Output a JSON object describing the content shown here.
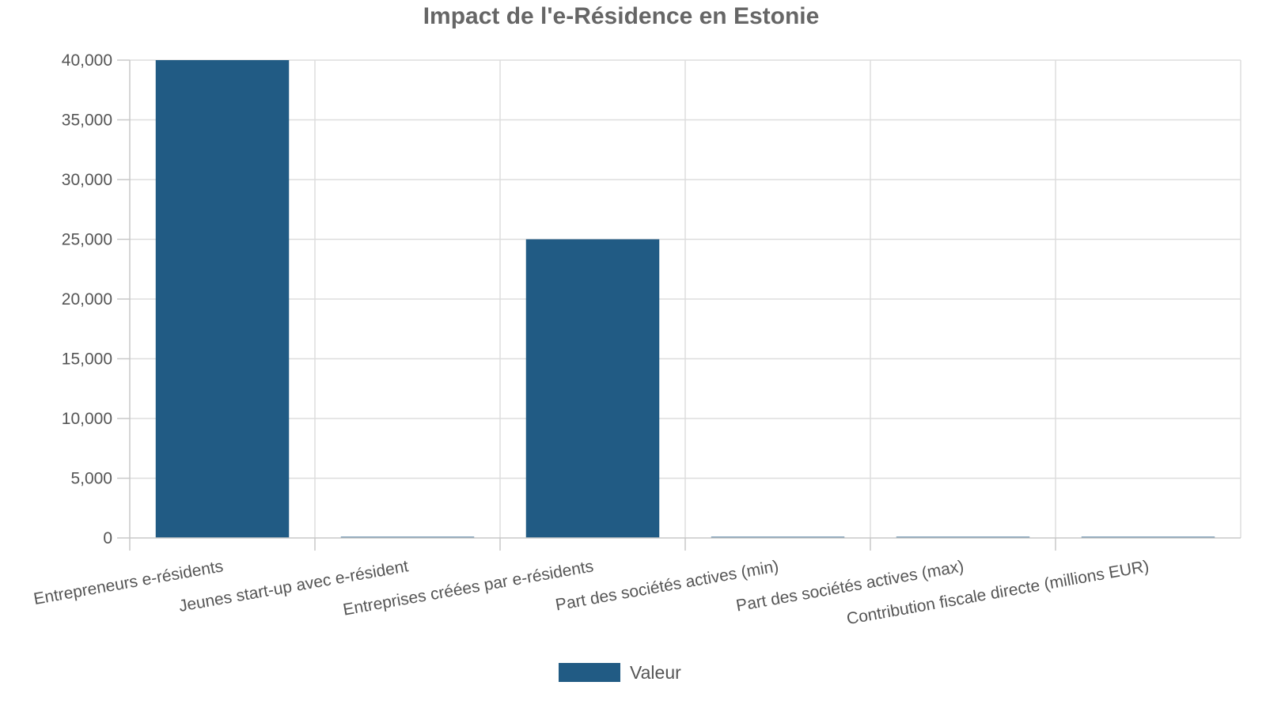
{
  "chart_data": {
    "type": "bar",
    "title": "Impact de l'e-Résidence en Estonie",
    "xlabel": "",
    "ylabel": "",
    "categories": [
      "Entrepreneurs e-résidents",
      "Jeunes start-up avec e-résident",
      "Entreprises créées par e-résidents",
      "Part des sociétés actives (min)",
      "Part des sociétés actives (max)",
      "Contribution fiscale directe (millions EUR)"
    ],
    "series": [
      {
        "name": "Valeur",
        "color": "#215b84",
        "values": [
          40000,
          25,
          25000,
          20,
          25,
          35
        ]
      }
    ],
    "ylim": [
      0,
      40000
    ],
    "yticks": [
      0,
      5000,
      10000,
      15000,
      20000,
      25000,
      30000,
      35000,
      40000
    ],
    "ytick_labels": [
      "0",
      "5,000",
      "10,000",
      "15,000",
      "20,000",
      "25,000",
      "30,000",
      "35,000",
      "40,000"
    ],
    "grid": true,
    "legend_position": "bottom"
  }
}
